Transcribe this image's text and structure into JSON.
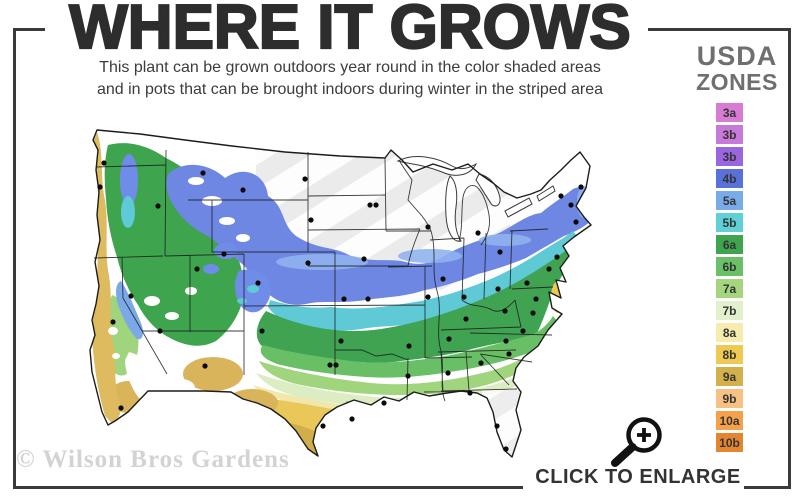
{
  "header": {
    "title": "WHERE IT GROWS",
    "subtitle_line1": "This plant can be grown outdoors year round in the color shaded areas",
    "subtitle_line2": "and in pots that can be brought indoors during winter in the striped area"
  },
  "legend": {
    "title_line1": "USDA",
    "title_line2": "ZONES",
    "zones": [
      {
        "label": "3a",
        "color": "#D77BD3"
      },
      {
        "label": "3b",
        "color": "#C878D8"
      },
      {
        "label": "3b",
        "color": "#9A66E0"
      },
      {
        "label": "4b",
        "color": "#5A70D9"
      },
      {
        "label": "5a",
        "color": "#7AABE9"
      },
      {
        "label": "5b",
        "color": "#5FD0D6"
      },
      {
        "label": "6a",
        "color": "#3EA54E"
      },
      {
        "label": "6b",
        "color": "#69C167"
      },
      {
        "label": "7a",
        "color": "#A5D67F"
      },
      {
        "label": "7b",
        "color": "#E2F0CC"
      },
      {
        "label": "8a",
        "color": "#F5ECAE"
      },
      {
        "label": "8b",
        "color": "#EECA52"
      },
      {
        "label": "9a",
        "color": "#D4B04B"
      },
      {
        "label": "9b",
        "color": "#F7C184"
      },
      {
        "label": "10a",
        "color": "#F5A04A"
      },
      {
        "label": "10b",
        "color": "#E4862E"
      }
    ]
  },
  "map": {
    "depicts": "Contiguous United States hardiness zone map with striped overwinter-indoors area",
    "watermark": "© Wilson Bros Gardens"
  },
  "footer": {
    "click_to_enlarge": "CLICK TO ENLARGE"
  }
}
